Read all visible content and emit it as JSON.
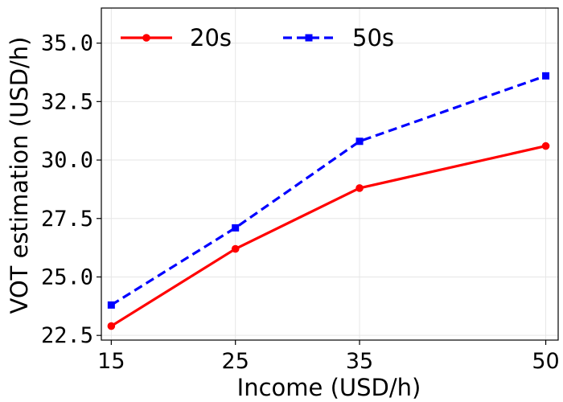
{
  "chart_data": {
    "type": "line",
    "xlabel": "Income (USD/h)",
    "ylabel": "VOT estimation (USD/h)",
    "x": [
      15,
      25,
      35,
      50
    ],
    "x_ticks": [
      "15",
      "25",
      "35",
      "50"
    ],
    "y_ticks": [
      "22.5",
      "25.0",
      "27.5",
      "30.0",
      "32.5",
      "35.0"
    ],
    "xlim": [
      14.2,
      51.0
    ],
    "ylim": [
      22.3,
      36.5
    ],
    "grid": true,
    "legend": "top-left",
    "series": [
      {
        "name": "20s",
        "values": [
          22.9,
          26.2,
          28.8,
          30.6
        ],
        "color": "#ff0000",
        "style": "solid",
        "marker": "circle"
      },
      {
        "name": "50s",
        "values": [
          23.8,
          27.1,
          30.8,
          33.6
        ],
        "color": "#0000ff",
        "style": "dashed",
        "marker": "square"
      }
    ]
  }
}
